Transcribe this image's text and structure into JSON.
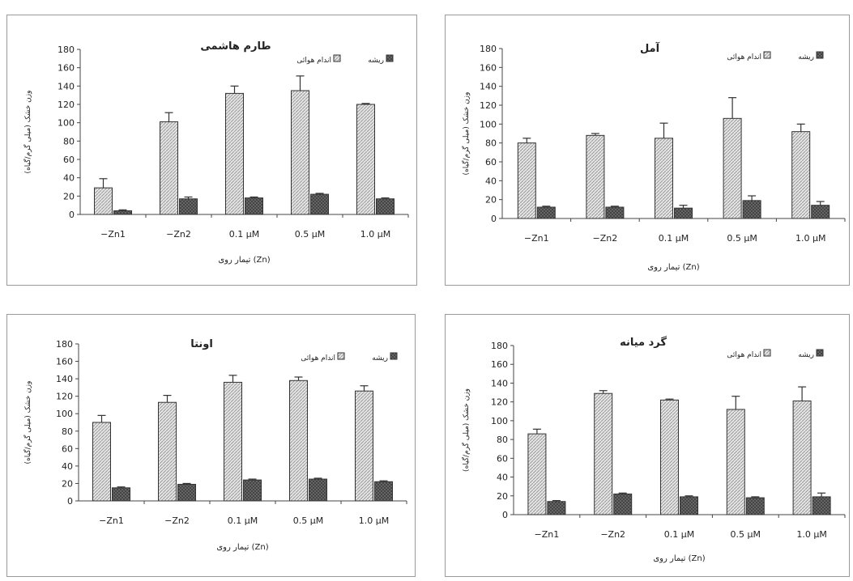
{
  "legend": {
    "shoot": "اندام هوائی",
    "root": "ریشه"
  },
  "colors": {
    "axis": "#444444",
    "shoot_bg": "#e6e6e6",
    "shoot_line": "#9a9a9a",
    "root_bg": "#6e6e6e",
    "root_line": "#3c3c3c",
    "bar_border": "#333333"
  },
  "chart_data": [
    {
      "type": "bar",
      "title": "طارم هاشمی",
      "xlabel": "تیمار روی (Zn)",
      "ylabel": "وزن خشک (میلی گرم/گیاه)",
      "categories": [
        "−Zn1",
        "−Zn2",
        "0.1 µM",
        "0.5 µM",
        "1.0 µM"
      ],
      "ylim": [
        0,
        180
      ],
      "yticks": [
        0,
        20,
        40,
        60,
        80,
        100,
        120,
        140,
        160,
        180
      ],
      "legend_position": "top-right",
      "series": [
        {
          "name": "اندام هوائی",
          "values": [
            29,
            101,
            132,
            135,
            120
          ],
          "errors": [
            10,
            10,
            8,
            16,
            1
          ]
        },
        {
          "name": "ریشه",
          "values": [
            4,
            17,
            18,
            22,
            17
          ],
          "errors": [
            1,
            2,
            1,
            1,
            1
          ]
        }
      ]
    },
    {
      "type": "bar",
      "title": "آمل",
      "xlabel": "تیمار روی (Zn)",
      "ylabel": "وزن خشک (میلی گرم/گیاه)",
      "categories": [
        "−Zn1",
        "−Zn2",
        "0.1 µM",
        "0.5 µM",
        "1.0 µM"
      ],
      "ylim": [
        0,
        180
      ],
      "yticks": [
        0,
        20,
        40,
        60,
        80,
        100,
        120,
        140,
        160,
        180
      ],
      "legend_position": "top-right",
      "series": [
        {
          "name": "اندام هوائی",
          "values": [
            80,
            88,
            85,
            106,
            92
          ],
          "errors": [
            5,
            2,
            16,
            22,
            8
          ]
        },
        {
          "name": "ریشه",
          "values": [
            12,
            12,
            11,
            19,
            14
          ],
          "errors": [
            1,
            1,
            3,
            5,
            4
          ]
        }
      ]
    },
    {
      "type": "bar",
      "title": "اونتا",
      "xlabel": "تیمار روی (Zn)",
      "ylabel": "وزن خشک (میلی گرم/گیاه)",
      "categories": [
        "−Zn1",
        "−Zn2",
        "0.1 µM",
        "0.5 µM",
        "1.0 µM"
      ],
      "ylim": [
        0,
        180
      ],
      "yticks": [
        0,
        20,
        40,
        60,
        80,
        100,
        120,
        140,
        160,
        180
      ],
      "legend_position": "top-right",
      "series": [
        {
          "name": "اندام هوائی",
          "values": [
            90,
            113,
            136,
            138,
            126
          ],
          "errors": [
            8,
            8,
            8,
            4,
            6
          ]
        },
        {
          "name": "ریشه",
          "values": [
            15,
            19,
            24,
            25,
            22
          ],
          "errors": [
            1,
            1,
            1,
            1,
            1
          ]
        }
      ]
    },
    {
      "type": "bar",
      "title": "گرد میانه",
      "xlabel": "تیمار روی (Zn)",
      "ylabel": "وزن خشک (میلی گرم/گیاه)",
      "categories": [
        "−Zn1",
        "−Zn2",
        "0.1 µM",
        "0.5 µM",
        "1.0 µM"
      ],
      "ylim": [
        0,
        180
      ],
      "yticks": [
        0,
        20,
        40,
        60,
        80,
        100,
        120,
        140,
        160,
        180
      ],
      "legend_position": "top-right",
      "series": [
        {
          "name": "اندام هوائی",
          "values": [
            86,
            129,
            122,
            112,
            121
          ],
          "errors": [
            5,
            3,
            1,
            14,
            15
          ]
        },
        {
          "name": "ریشه",
          "values": [
            14,
            22,
            19,
            18,
            19
          ],
          "errors": [
            1,
            1,
            1,
            1,
            4
          ]
        }
      ]
    }
  ]
}
